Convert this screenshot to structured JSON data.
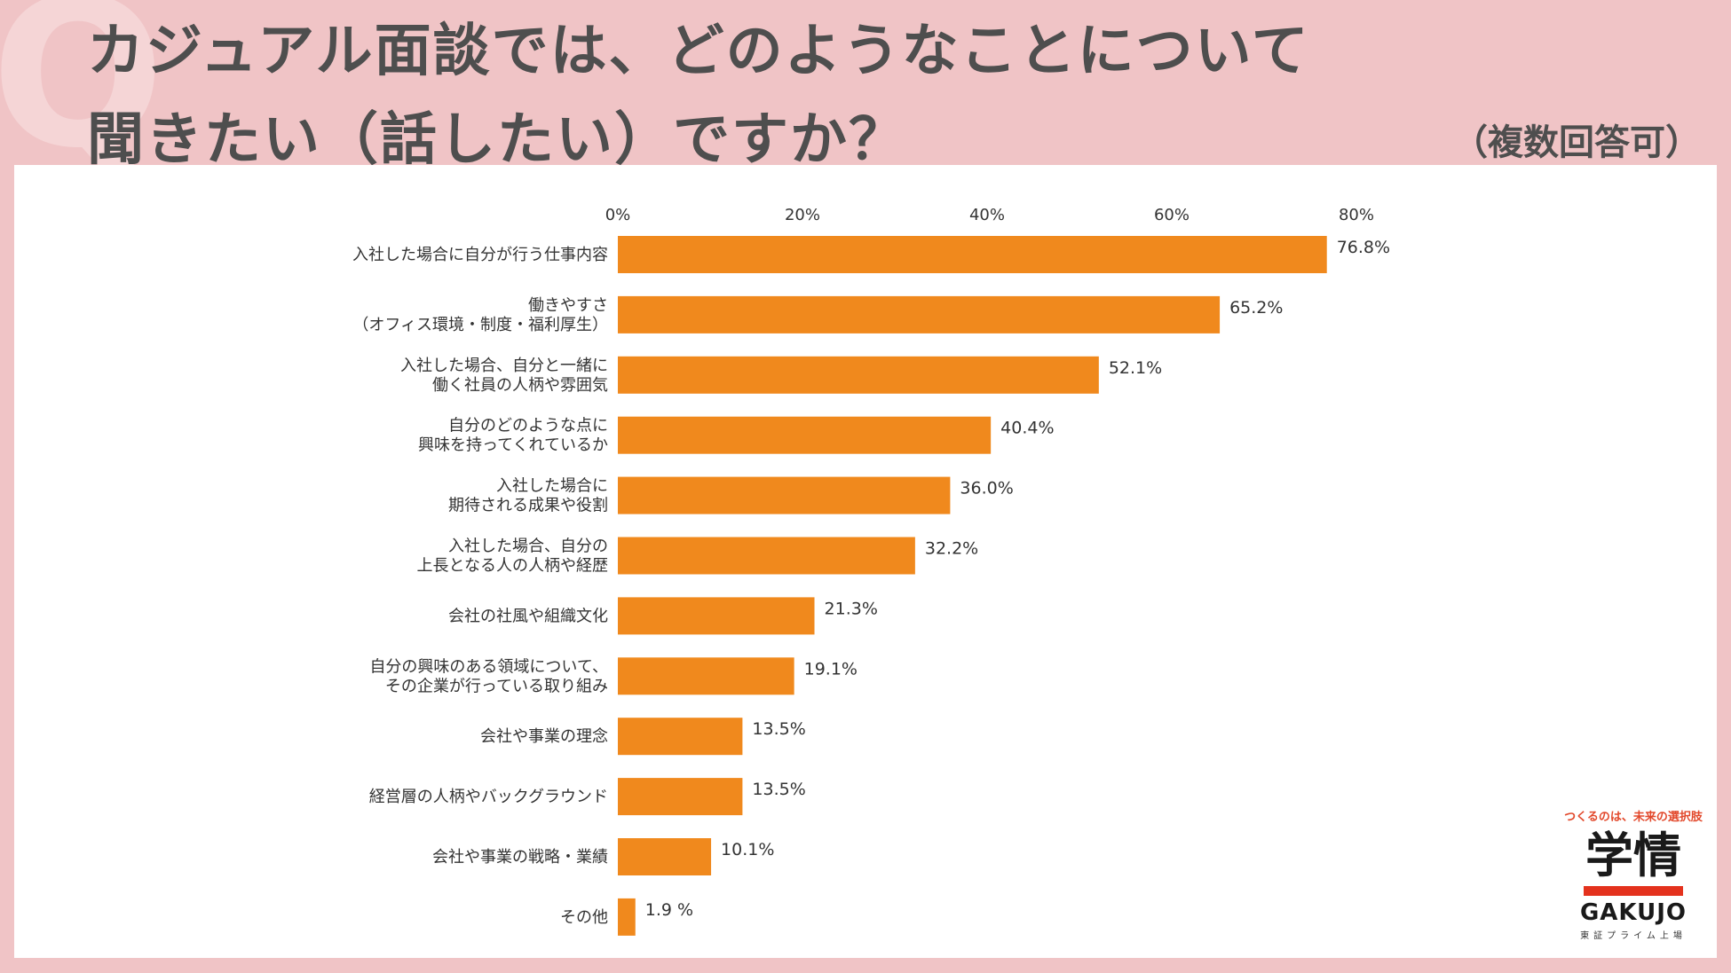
{
  "page": {
    "bg_mark": "Q",
    "title_line1": "カジュアル面談では、どのようなことについて",
    "title_line2": "聞きたい（話したい）ですか？",
    "note": "（複数回答可）"
  },
  "colors": {
    "bar": "#f0891d",
    "background": "#f0c4c6",
    "title": "#4e4e4e",
    "brand_red": "#e4321d"
  },
  "logo": {
    "tagline": "つくるのは、未来の選択肢",
    "mark": "学情",
    "name": "GAKUJO",
    "sub": "東証プライム上場"
  },
  "chart_data": {
    "type": "bar",
    "orientation": "horizontal",
    "title": "カジュアル面談では、どのようなことについて聞きたい（話したい）ですか？",
    "xlabel": "",
    "ylabel": "",
    "xlim": [
      0,
      80
    ],
    "ticks": [
      "0%",
      "20%",
      "40%",
      "60%",
      "80%"
    ],
    "categories": [
      [
        "入社した場合に自分が行う仕事内容"
      ],
      [
        "働きやすさ",
        "（オフィス環境・制度・福利厚生）"
      ],
      [
        "入社した場合、自分と一緒に",
        "働く社員の人柄や雰囲気"
      ],
      [
        "自分のどのような点に",
        "興味を持ってくれているか"
      ],
      [
        "入社した場合に",
        "期待される成果や役割"
      ],
      [
        "入社した場合、自分の",
        "上長となる人の人柄や経歴"
      ],
      [
        "会社の社風や組織文化"
      ],
      [
        "自分の興味のある領域について、",
        "その企業が行っている取り組み"
      ],
      [
        "会社や事業の理念"
      ],
      [
        "経営層の人柄やバックグラウンド"
      ],
      [
        "会社や事業の戦略・業績"
      ],
      [
        "その他"
      ]
    ],
    "values": [
      76.8,
      65.2,
      52.1,
      40.4,
      36.0,
      32.2,
      21.3,
      19.1,
      13.5,
      13.5,
      10.1,
      1.9
    ],
    "value_labels": [
      "76.8%",
      "65.2%",
      "52.1%",
      "40.4%",
      "36.0%",
      "32.2%",
      "21.3%",
      "19.1%",
      "13.5%",
      "13.5%",
      "10.1%",
      "1.9 %"
    ]
  }
}
